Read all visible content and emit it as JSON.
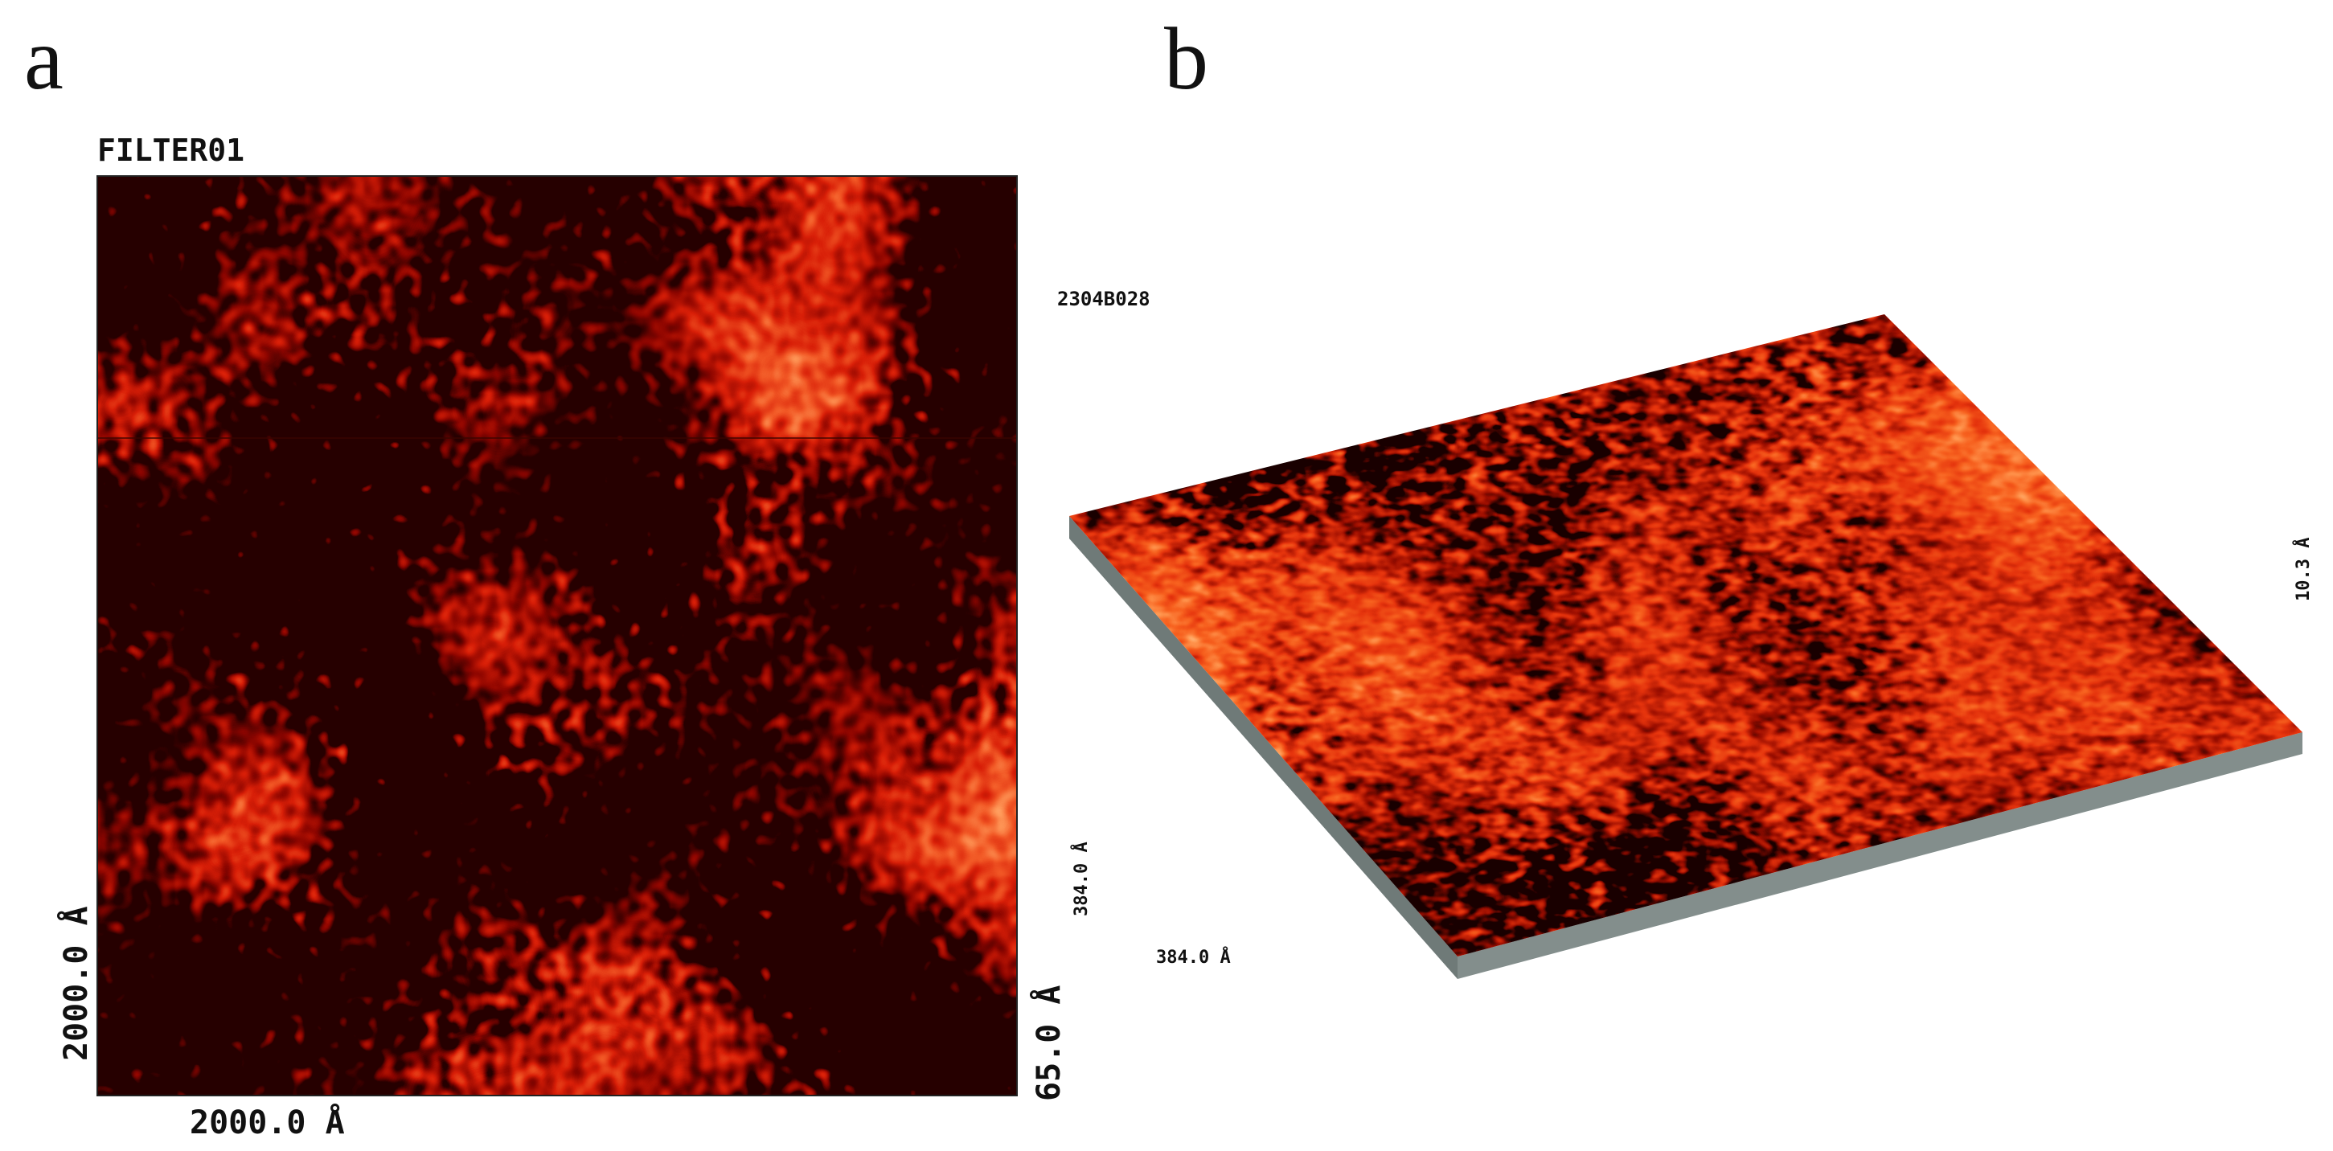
{
  "panels": [
    {
      "label": "a",
      "title": "FILTER01",
      "x_axis": "2000.0 Å",
      "y_axis": "2000.0 Å",
      "z_range": "65.0 Å"
    },
    {
      "label": "b",
      "id": "2304B028",
      "x_axis": "384.0 Å",
      "y_axis": "384.0 Å",
      "z_range": "10.3 Å"
    }
  ]
}
